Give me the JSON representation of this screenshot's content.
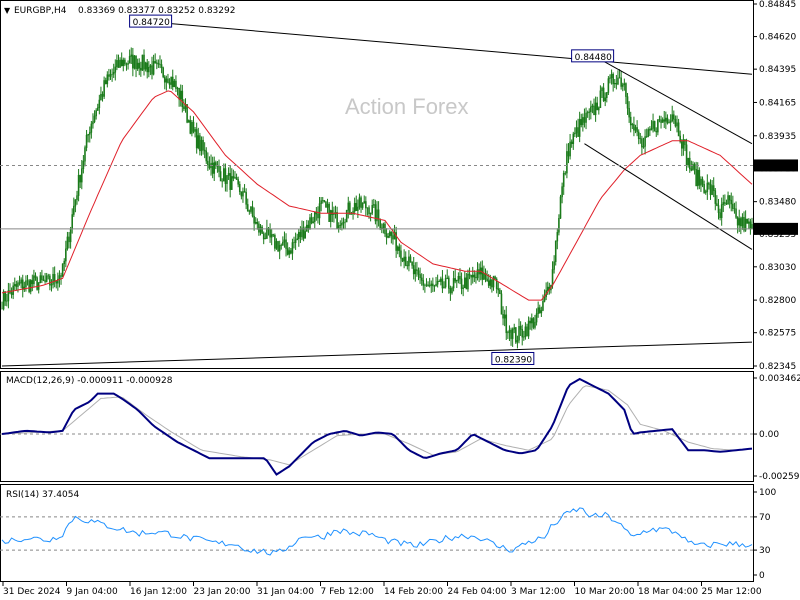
{
  "header": {
    "symbol": "EURGBP,H4",
    "ohlc": "0.83369 0.83377 0.83252 0.83292"
  },
  "watermark": "Action Forex",
  "colors": {
    "candle": "#1a7a1a",
    "ma": "#e0202a",
    "trendline": "#000000",
    "macd": "#000080",
    "signal": "#b0b0b0",
    "rsi": "#1e90ff",
    "grid_dash": "#888888"
  },
  "chart_data": [
    {
      "type": "candlestick",
      "panel": "price",
      "y_ticks": [
        "0.84845",
        "0.84620",
        "0.84395",
        "0.84165",
        "0.83935",
        "0.83710",
        "0.83480",
        "0.83255",
        "0.83030",
        "0.82800",
        "0.82575",
        "0.82345"
      ],
      "ylim": [
        0.82345,
        0.84845
      ],
      "x_ticks": [
        "31 Dec 2024",
        "9 Jan 04:00",
        "16 Jan 12:00",
        "23 Jan 20:00",
        "31 Jan 04:00",
        "7 Feb 12:00",
        "14 Feb 20:00",
        "24 Feb 04:00",
        "3 Mar 12:00",
        "10 Mar 20:00",
        "18 Mar 04:00",
        "25 Mar 12:00"
      ],
      "close_anchors": [
        [
          0,
          0.828
        ],
        [
          10,
          0.829
        ],
        [
          20,
          0.8292
        ],
        [
          30,
          0.8292
        ],
        [
          38,
          0.83
        ],
        [
          45,
          0.8345
        ],
        [
          55,
          0.84
        ],
        [
          65,
          0.843
        ],
        [
          75,
          0.8445
        ],
        [
          85,
          0.8445
        ],
        [
          95,
          0.844
        ],
        [
          105,
          0.8435
        ],
        [
          112,
          0.842
        ],
        [
          120,
          0.8395
        ],
        [
          130,
          0.8375
        ],
        [
          140,
          0.8365
        ],
        [
          150,
          0.8355
        ],
        [
          160,
          0.833
        ],
        [
          170,
          0.832
        ],
        [
          180,
          0.8315
        ],
        [
          190,
          0.833
        ],
        [
          200,
          0.8345
        ],
        [
          210,
          0.8335
        ],
        [
          220,
          0.8345
        ],
        [
          230,
          0.8345
        ],
        [
          240,
          0.833
        ],
        [
          250,
          0.8315
        ],
        [
          260,
          0.8295
        ],
        [
          270,
          0.8288
        ],
        [
          280,
          0.829
        ],
        [
          290,
          0.8292
        ],
        [
          300,
          0.8298
        ],
        [
          310,
          0.829
        ],
        [
          315,
          0.8265
        ],
        [
          322,
          0.8255
        ],
        [
          330,
          0.8262
        ],
        [
          338,
          0.8272
        ],
        [
          345,
          0.83
        ],
        [
          350,
          0.835
        ],
        [
          355,
          0.8385
        ],
        [
          362,
          0.84
        ],
        [
          370,
          0.841
        ],
        [
          378,
          0.8425
        ],
        [
          385,
          0.8435
        ],
        [
          390,
          0.843
        ],
        [
          395,
          0.84
        ],
        [
          402,
          0.8385
        ],
        [
          408,
          0.84
        ],
        [
          415,
          0.8405
        ],
        [
          420,
          0.841
        ],
        [
          425,
          0.8395
        ],
        [
          430,
          0.8375
        ],
        [
          435,
          0.8365
        ],
        [
          440,
          0.836
        ],
        [
          445,
          0.8355
        ],
        [
          450,
          0.834
        ],
        [
          455,
          0.8348
        ],
        [
          460,
          0.8335
        ],
        [
          466,
          0.8332
        ],
        [
          470,
          0.8329
        ]
      ],
      "moving_average_anchors": [
        [
          0,
          0.8285
        ],
        [
          25,
          0.829
        ],
        [
          38,
          0.8295
        ],
        [
          55,
          0.834
        ],
        [
          75,
          0.839
        ],
        [
          95,
          0.842
        ],
        [
          105,
          0.8425
        ],
        [
          120,
          0.841
        ],
        [
          140,
          0.838
        ],
        [
          160,
          0.836
        ],
        [
          180,
          0.8345
        ],
        [
          200,
          0.834
        ],
        [
          220,
          0.834
        ],
        [
          240,
          0.8335
        ],
        [
          250,
          0.832
        ],
        [
          270,
          0.8305
        ],
        [
          290,
          0.83
        ],
        [
          300,
          0.83
        ],
        [
          315,
          0.829
        ],
        [
          330,
          0.828
        ],
        [
          338,
          0.828
        ],
        [
          345,
          0.829
        ],
        [
          360,
          0.832
        ],
        [
          375,
          0.835
        ],
        [
          390,
          0.837
        ],
        [
          400,
          0.838
        ],
        [
          410,
          0.8385
        ],
        [
          420,
          0.839
        ],
        [
          430,
          0.839
        ],
        [
          440,
          0.8385
        ],
        [
          450,
          0.838
        ],
        [
          460,
          0.837
        ],
        [
          470,
          0.836
        ]
      ],
      "trendlines": [
        {
          "from": [
            95,
            0.8472
          ],
          "to": [
            470,
            0.8436
          ]
        },
        {
          "from": [
            0,
            0.82345
          ],
          "to": [
            470,
            0.8251
          ]
        },
        {
          "from": [
            372,
            0.8448
          ],
          "to": [
            470,
            0.8388
          ]
        },
        {
          "from": [
            365,
            0.8388
          ],
          "to": [
            470,
            0.8315
          ]
        }
      ],
      "hlines": [
        {
          "value": 0.8373,
          "style": "dashed",
          "label": "0.83730"
        },
        {
          "value": 0.83292,
          "style": "solid",
          "label": "0.83292"
        }
      ],
      "annotations": [
        {
          "x": 95,
          "value": 0.8472,
          "label": "0.84720"
        },
        {
          "x": 372,
          "value": 0.8448,
          "label": "0.84480"
        },
        {
          "x": 322,
          "value": 0.8239,
          "label": "0.82390"
        }
      ]
    },
    {
      "type": "line",
      "panel": "macd",
      "title": "MACD(12,26,9) -0.000911 -0.000928",
      "y_ticks": [
        "0.003462",
        "0.00",
        "-0.002593"
      ],
      "ylim": [
        -0.002593,
        0.003462
      ],
      "series": [
        {
          "name": "MACD",
          "anchors": [
            [
              0,
              0.0
            ],
            [
              15,
              0.0002
            ],
            [
              30,
              0.0001
            ],
            [
              38,
              0.0002
            ],
            [
              45,
              0.0015
            ],
            [
              55,
              0.002
            ],
            [
              60,
              0.0025
            ],
            [
              70,
              0.0025
            ],
            [
              75,
              0.0022
            ],
            [
              85,
              0.0015
            ],
            [
              95,
              0.0005
            ],
            [
              110,
              -0.0005
            ],
            [
              130,
              -0.0015
            ],
            [
              150,
              -0.0015
            ],
            [
              165,
              -0.0015
            ],
            [
              172,
              -0.0025
            ],
            [
              180,
              -0.002
            ],
            [
              195,
              -0.0005
            ],
            [
              205,
              0.0
            ],
            [
              215,
              0.0002
            ],
            [
              225,
              -0.0001
            ],
            [
              235,
              0.0001
            ],
            [
              245,
              0.0
            ],
            [
              255,
              -0.001
            ],
            [
              265,
              -0.0015
            ],
            [
              275,
              -0.0012
            ],
            [
              285,
              -0.001
            ],
            [
              295,
              0.0
            ],
            [
              305,
              -0.0005
            ],
            [
              315,
              -0.001
            ],
            [
              325,
              -0.0012
            ],
            [
              335,
              -0.001
            ],
            [
              345,
              0.0005
            ],
            [
              355,
              0.003
            ],
            [
              362,
              0.0034
            ],
            [
              370,
              0.003
            ],
            [
              380,
              0.0025
            ],
            [
              390,
              0.0015
            ],
            [
              395,
              0.0
            ],
            [
              400,
              0.0001
            ],
            [
              410,
              0.0002
            ],
            [
              420,
              0.0003
            ],
            [
              430,
              -0.001
            ],
            [
              440,
              -0.001
            ],
            [
              450,
              -0.0011
            ],
            [
              460,
              -0.001
            ],
            [
              470,
              -0.0009
            ]
          ]
        },
        {
          "name": "Signal",
          "anchors": [
            [
              0,
              0.0
            ],
            [
              20,
              0.0001
            ],
            [
              38,
              0.0002
            ],
            [
              50,
              0.0012
            ],
            [
              62,
              0.0022
            ],
            [
              75,
              0.0023
            ],
            [
              90,
              0.0012
            ],
            [
              105,
              0.0002
            ],
            [
              125,
              -0.001
            ],
            [
              150,
              -0.0014
            ],
            [
              168,
              -0.0016
            ],
            [
              180,
              -0.0019
            ],
            [
              195,
              -0.001
            ],
            [
              210,
              -0.0001
            ],
            [
              225,
              0.0
            ],
            [
              240,
              0.0
            ],
            [
              255,
              -0.0006
            ],
            [
              270,
              -0.0013
            ],
            [
              285,
              -0.0011
            ],
            [
              300,
              -0.0003
            ],
            [
              315,
              -0.0007
            ],
            [
              330,
              -0.001
            ],
            [
              345,
              -0.0003
            ],
            [
              355,
              0.0018
            ],
            [
              365,
              0.003
            ],
            [
              380,
              0.0027
            ],
            [
              392,
              0.0018
            ],
            [
              400,
              0.0006
            ],
            [
              415,
              0.0002
            ],
            [
              430,
              -0.0005
            ],
            [
              445,
              -0.0009
            ],
            [
              460,
              -0.001
            ],
            [
              470,
              -0.0009
            ]
          ]
        }
      ]
    },
    {
      "type": "line",
      "panel": "rsi",
      "title": "RSI(14) 37.4054",
      "y_ticks": [
        "100",
        "70",
        "30",
        "0"
      ],
      "ylim": [
        0,
        100
      ],
      "levels": [
        70,
        30
      ],
      "series": [
        {
          "name": "RSI",
          "anchors": [
            [
              0,
              40
            ],
            [
              15,
              45
            ],
            [
              30,
              42
            ],
            [
              38,
              50
            ],
            [
              45,
              70
            ],
            [
              55,
              65
            ],
            [
              65,
              60
            ],
            [
              75,
              55
            ],
            [
              85,
              50
            ],
            [
              95,
              52
            ],
            [
              105,
              50
            ],
            [
              115,
              45
            ],
            [
              125,
              42
            ],
            [
              135,
              38
            ],
            [
              145,
              38
            ],
            [
              155,
              30
            ],
            [
              165,
              28
            ],
            [
              172,
              25
            ],
            [
              180,
              35
            ],
            [
              190,
              48
            ],
            [
              200,
              45
            ],
            [
              210,
              55
            ],
            [
              220,
              50
            ],
            [
              230,
              50
            ],
            [
              240,
              42
            ],
            [
              250,
              38
            ],
            [
              260,
              35
            ],
            [
              270,
              40
            ],
            [
              280,
              45
            ],
            [
              290,
              48
            ],
            [
              300,
              45
            ],
            [
              310,
              35
            ],
            [
              320,
              30
            ],
            [
              330,
              40
            ],
            [
              340,
              45
            ],
            [
              345,
              60
            ],
            [
              355,
              75
            ],
            [
              362,
              80
            ],
            [
              370,
              70
            ],
            [
              378,
              72
            ],
            [
              385,
              65
            ],
            [
              395,
              45
            ],
            [
              405,
              55
            ],
            [
              415,
              55
            ],
            [
              425,
              50
            ],
            [
              430,
              38
            ],
            [
              440,
              35
            ],
            [
              450,
              38
            ],
            [
              460,
              37
            ],
            [
              470,
              37
            ]
          ]
        }
      ]
    }
  ]
}
